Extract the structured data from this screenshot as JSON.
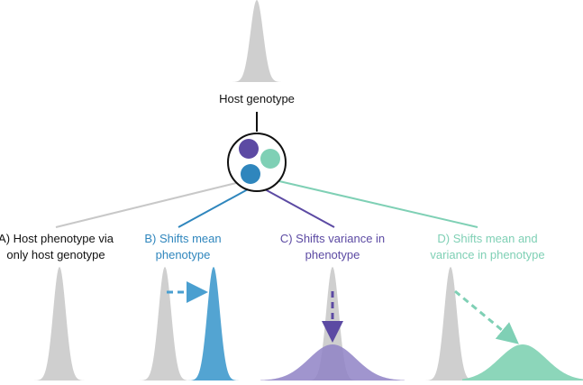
{
  "diagram": {
    "host_label": "Host genotype",
    "panels": [
      {
        "id": "A",
        "lines": [
          "A) Host phenotype via",
          "only host genotype"
        ]
      },
      {
        "id": "B",
        "lines": [
          "B) Shifts mean",
          "phenotype"
        ]
      },
      {
        "id": "C",
        "lines": [
          "C) Shifts variance in",
          "phenotype"
        ]
      },
      {
        "id": "D",
        "lines": [
          "D) Shifts mean and",
          "variance in phenotype"
        ]
      }
    ]
  },
  "colors": {
    "baseline_gray": "#cfcfcf",
    "connector_gray": "#c8c8c8",
    "text_black": "#111111",
    "blue": "#2f86bd",
    "purple": "#5c4aa3",
    "mint": "#7fd0b5",
    "blue_fill": "#4a9fd0",
    "purple_fill": "#8f83c6",
    "mint_fill": "#86d4b6"
  }
}
